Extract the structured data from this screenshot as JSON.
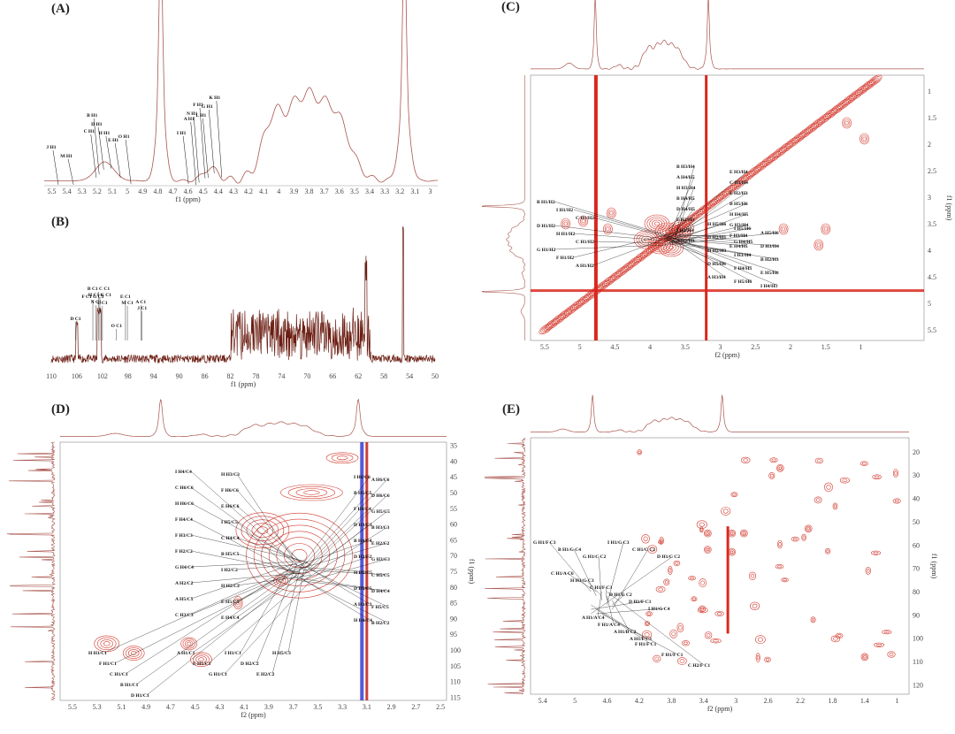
{
  "panels": [
    {
      "id": "A",
      "label": "(A)",
      "chart_data": {
        "type": "line",
        "xlabel": "f1 (ppm)",
        "xlim": [
          5.55,
          2.95
        ],
        "xticks": [
          5.5,
          5.4,
          5.3,
          5.2,
          5.1,
          5.0,
          4.9,
          4.8,
          4.7,
          4.6,
          4.5,
          4.4,
          4.3,
          4.2,
          4.1,
          4.0,
          3.9,
          3.8,
          3.7,
          3.6,
          3.5,
          3.4,
          3.3,
          3.2,
          3.1,
          3.0
        ],
        "annotations": [
          {
            "text": "J H1",
            "x": 5.48
          },
          {
            "text": "M H1",
            "x": 5.38
          },
          {
            "text": "C H1",
            "x": 5.23
          },
          {
            "text": "B H1",
            "x": 5.21
          },
          {
            "text": "D H1",
            "x": 5.18
          },
          {
            "text": "H H1",
            "x": 5.13
          },
          {
            "text": "E H1",
            "x": 5.07
          },
          {
            "text": "O H1",
            "x": 5.0
          },
          {
            "text": "I H1",
            "x": 4.62
          },
          {
            "text": "A H1",
            "x": 4.57
          },
          {
            "text": "N H1",
            "x": 4.55
          },
          {
            "text": "F H1",
            "x": 4.51
          },
          {
            "text": "L H1",
            "x": 4.49
          },
          {
            "text": "G H1",
            "x": 4.45
          },
          {
            "text": "K H1",
            "x": 4.4
          }
        ]
      }
    },
    {
      "id": "B",
      "label": "(B)",
      "chart_data": {
        "type": "line",
        "xlabel": "f1 (ppm)",
        "xlim": [
          110,
          50
        ],
        "xticks": [
          110,
          106,
          102,
          98,
          94,
          90,
          86,
          82,
          78,
          74,
          70,
          66,
          62,
          58,
          54,
          50
        ],
        "annotations": [
          {
            "text": "D C1",
            "x": 106.2
          },
          {
            "text": "F C1 G C1",
            "x": 103.5
          },
          {
            "text": "B C1 C C1",
            "x": 102.6
          },
          {
            "text": "H C1 K C1",
            "x": 102.4
          },
          {
            "text": "N C1",
            "x": 103.0
          },
          {
            "text": "L C1",
            "x": 102.0
          },
          {
            "text": "O C1",
            "x": 99.8
          },
          {
            "text": "E C1",
            "x": 98.4
          },
          {
            "text": "M C1",
            "x": 98.1
          },
          {
            "text": "A C1",
            "x": 96.0
          },
          {
            "text": "J C1",
            "x": 95.8
          }
        ]
      }
    },
    {
      "id": "C",
      "label": "(C)",
      "chart_data": {
        "type": "heatmap",
        "xlabel": "f2 (ppm)",
        "ylabel": "f1 (ppm)",
        "xlim": [
          5.7,
          0.1
        ],
        "ylim": [
          0.7,
          5.7
        ],
        "xticks": [
          5.5,
          5.0,
          4.5,
          4.0,
          3.5,
          3.0,
          2.5,
          2.0,
          1.5,
          1.0
        ],
        "yticks": [
          1.0,
          1.5,
          2.0,
          2.5,
          3.0,
          3.5,
          4.0,
          4.5,
          5.0,
          5.5
        ],
        "annotations": [
          "B H1/H2",
          "I H1/H2",
          "C H1/H2",
          "D H1/H2",
          "H H1/H2",
          "C H1/H2",
          "G H1/H2",
          "F H1/H2",
          "A H1/H2",
          "B H3/H4",
          "E H3/H4",
          "A H4/H5",
          "C H3/H4",
          "H H3/H4",
          "E H2/H3",
          "B H4/H5",
          "B H5/H6",
          "D H4/H5",
          "H H4/H5",
          "F H2/H3",
          "G H3/H4",
          "I H2/H3",
          "F H3/H4",
          "A H2/H3",
          "E H4/H5",
          "H H5/H6",
          "I H5/H6",
          "A H5/H6",
          "D H2/H3",
          "G H4/H5",
          "D H3/H4",
          "H H2/H3",
          "I H3/H4",
          "B H2/H3",
          "D H5/H6",
          "F H4/H5",
          "E H5/H6",
          "A H3/H4",
          "F H5/H6",
          "I H4/H5"
        ]
      }
    },
    {
      "id": "D",
      "label": "(D)",
      "chart_data": {
        "type": "heatmap",
        "xlabel": "f2 (ppm)",
        "ylabel": "f1 (ppm)",
        "xlim": [
          5.6,
          2.45
        ],
        "ylim": [
          34,
          116
        ],
        "xticks": [
          5.5,
          5.3,
          5.1,
          4.9,
          4.7,
          4.5,
          4.3,
          4.1,
          3.9,
          3.7,
          3.5,
          3.3,
          3.1,
          2.9,
          2.7,
          2.5
        ],
        "yticks": [
          35,
          40,
          45,
          50,
          55,
          60,
          65,
          70,
          75,
          80,
          85,
          90,
          95,
          100,
          105,
          110,
          115
        ],
        "annotations": [
          "I H4/C4",
          "H H3/C3",
          "I H6/C6",
          "A H6/C6",
          "C H6/C6",
          "F H6/C6",
          "B H5/C5",
          "D H6/C6",
          "H H6/C6",
          "E H6/C6",
          "F H4/C4",
          "G H5/C5",
          "F H4/C4",
          "I H5/C5",
          "D H3/C3",
          "B H3/C3",
          "F H3/C3",
          "C H4/C4",
          "B H4/C4",
          "E H2/C2",
          "F H2/C2",
          "B H5/C5",
          "D H2/C2",
          "G H3/C3",
          "G H4/C4",
          "I H2/C2",
          "H H5/C5",
          "C H5/C5",
          "A H2/C2",
          "H H2/C2",
          "D H5/C5",
          "D H4/C4",
          "A H5/C5",
          "E H5/C5",
          "A H3/C3",
          "F H5/C5",
          "C H3/C3",
          "E H4/C4",
          "H H4/C4",
          "B H2/C2",
          "H H1/C1",
          "F H1/C1",
          "C H1/C1",
          "B H1/C1",
          "D H1/C1",
          "A H1/C1",
          "E H1/C1",
          "G H1/C1",
          "I H1/C1",
          "D H2/C2",
          "E H2/C2",
          "H H5/C3"
        ]
      }
    },
    {
      "id": "E",
      "label": "(E)",
      "chart_data": {
        "type": "heatmap",
        "xlabel": "f2 (ppm)",
        "ylabel": "f1 (ppm)",
        "xlim": [
          5.55,
          0.85
        ],
        "ylim": [
          14,
          124
        ],
        "xticks": [
          5.4,
          5.0,
          4.6,
          4.2,
          3.8,
          3.4,
          3.0,
          2.6,
          2.2,
          1.8,
          1.4,
          1.0
        ],
        "yticks": [
          20,
          30,
          40,
          50,
          60,
          70,
          80,
          90,
          100,
          110,
          120
        ],
        "annotations": [
          "G H1/F C3",
          "B H1/G C4",
          "G H1/C C2",
          "I H1/G C3",
          "C H1/C C2",
          "D H1/C C2",
          "C H1/A C6",
          "H H1/G C3",
          "C H1/F C3",
          "D H1/E C2",
          "D H1/F C3",
          "I H1/G C4",
          "A H1/A C4",
          "F H1/A C4",
          "A H1/B C2",
          "A H1/F C3",
          "F H1/F C1",
          "F H1/F C1",
          "C H2/F C1"
        ]
      }
    }
  ]
}
